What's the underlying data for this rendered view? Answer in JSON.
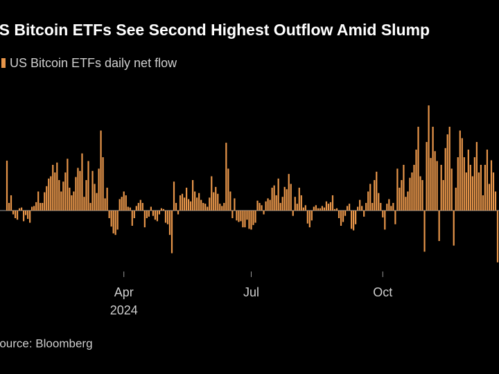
{
  "chart_data": {
    "type": "bar",
    "title": "US Bitcoin ETFs See Second Highest Outflow Amid Slump",
    "legend_label": "US Bitcoin ETFs daily net flow",
    "source": "Source: Bloomberg",
    "color": "#e8964a",
    "categories": [
      null,
      null,
      null,
      null,
      null,
      null,
      null,
      null,
      null,
      null,
      null,
      null,
      null,
      null,
      null,
      null,
      null,
      null,
      null,
      null,
      null,
      null,
      null,
      null,
      null,
      null,
      null,
      null,
      null,
      null,
      null,
      null,
      null,
      null,
      null,
      null,
      null,
      null,
      null,
      null,
      null,
      null,
      null,
      null,
      null,
      null,
      null,
      null,
      null,
      null,
      null,
      null,
      null,
      null,
      null,
      null,
      null,
      null,
      null,
      null,
      null,
      null,
      null,
      null,
      null,
      null,
      null,
      null,
      null,
      null,
      null,
      null,
      null,
      null,
      null,
      null,
      null,
      null,
      null,
      null,
      null,
      null,
      null,
      null,
      null,
      null,
      null,
      null,
      null,
      null,
      null,
      null,
      null,
      null,
      null,
      null,
      null,
      null,
      null,
      null,
      null,
      null,
      null,
      null,
      null,
      null,
      null,
      null,
      null,
      null,
      null,
      null,
      null,
      null,
      null,
      null,
      null,
      null,
      null,
      null,
      null,
      null,
      null,
      null,
      null,
      null,
      null,
      null,
      null,
      null,
      null,
      null,
      null,
      null,
      null,
      null,
      null,
      null,
      null,
      null,
      null,
      null,
      null,
      null,
      null,
      null,
      null,
      null,
      null,
      null,
      null,
      null,
      null,
      null,
      null,
      null,
      null,
      null,
      null,
      null,
      null,
      null,
      null,
      null,
      null,
      null,
      null,
      null,
      null,
      null,
      null,
      null,
      null,
      null,
      null,
      null,
      null,
      null,
      null,
      null,
      null,
      null,
      null,
      null,
      null,
      null,
      null,
      null,
      null,
      null,
      null,
      null,
      null,
      null,
      null,
      null,
      null,
      null,
      null,
      null,
      null,
      null,
      null,
      null,
      null,
      null,
      null,
      null,
      null,
      null,
      null,
      null,
      null,
      null,
      null,
      null,
      null,
      null,
      null,
      null,
      null,
      null,
      null,
      null,
      null,
      null,
      null,
      null,
      null,
      null,
      null,
      null,
      null,
      null,
      null,
      null
    ],
    "values": [
      655,
      100,
      200,
      -50,
      -100,
      -120,
      30,
      40,
      -140,
      -60,
      -110,
      -160,
      50,
      60,
      110,
      250,
      100,
      100,
      240,
      320,
      420,
      450,
      600,
      500,
      630,
      400,
      250,
      380,
      500,
      680,
      300,
      200,
      250,
      440,
      560,
      520,
      750,
      180,
      400,
      650,
      100,
      520,
      350,
      230,
      550,
      1050,
      700,
      160,
      300,
      -100,
      -210,
      -300,
      -320,
      -250,
      150,
      180,
      250,
      200,
      50,
      40,
      -200,
      -100,
      60,
      100,
      140,
      100,
      -220,
      -100,
      -80,
      50,
      -70,
      -120,
      -140,
      -50,
      30,
      20,
      -160,
      -180,
      -320,
      -560,
      380,
      100,
      -50,
      200,
      220,
      170,
      300,
      150,
      120,
      400,
      250,
      170,
      230,
      140,
      100,
      90,
      50,
      170,
      450,
      240,
      310,
      220,
      90,
      60,
      100,
      890,
      550,
      250,
      -100,
      160,
      -130,
      -150,
      -140,
      -220,
      -220,
      -120,
      -240,
      -250,
      -190,
      -160,
      130,
      100,
      70,
      -50,
      120,
      160,
      140,
      300,
      330,
      200,
      420,
      100,
      180,
      310,
      280,
      480,
      350,
      -70,
      180,
      90,
      300,
      200,
      40,
      70,
      -170,
      -220,
      -130,
      50,
      70,
      30,
      30,
      60,
      40,
      120,
      90,
      110,
      200,
      20,
      30,
      -100,
      -200,
      -150,
      -70,
      60,
      90,
      -240,
      -260,
      -180,
      50,
      140,
      60,
      -80,
      100,
      250,
      350,
      100,
      400,
      510,
      230,
      100,
      -90,
      -250,
      90,
      150,
      60,
      100,
      -180,
      550,
      300,
      400,
      600,
      180,
      250,
      430,
      500,
      600,
      800,
      1100,
      450,
      400,
      -540,
      900,
      1380,
      690,
      1100,
      780,
      650,
      -400,
      600,
      400,
      820,
      1000,
      1100,
      550,
      -460,
      300,
      700,
      1050,
      950,
      700,
      500,
      800,
      600,
      450,
      700,
      900,
      500,
      600,
      200,
      600,
      800,
      350,
      660,
      500,
      250,
      -680
    ],
    "ylim": [
      -800,
      1700
    ],
    "xticks": [
      {
        "value": 56,
        "label": "Apr"
      },
      {
        "value": 117,
        "label": "Jul"
      },
      {
        "value": 180,
        "label": "Oct"
      }
    ],
    "year_labels": [
      {
        "value": 56,
        "label": "2024"
      }
    ]
  }
}
